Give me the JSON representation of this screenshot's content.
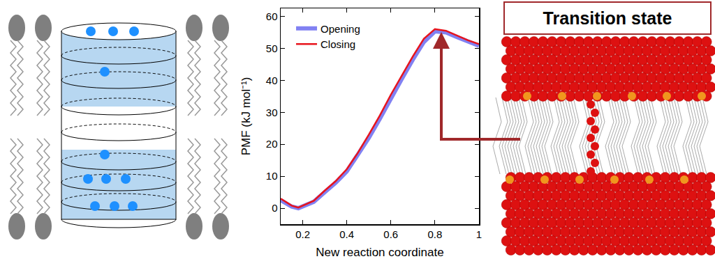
{
  "chart_data": {
    "type": "line",
    "x": [
      0.1,
      0.15,
      0.18,
      0.2,
      0.25,
      0.3,
      0.35,
      0.4,
      0.45,
      0.5,
      0.55,
      0.6,
      0.65,
      0.7,
      0.75,
      0.8,
      0.85,
      0.9,
      0.95,
      1.0
    ],
    "series": [
      {
        "name": "Opening",
        "color": "#6b6bf0",
        "values": [
          2.5,
          0.5,
          0,
          0.5,
          2,
          5,
          8,
          11.5,
          16.5,
          22,
          28,
          34.5,
          40.5,
          46.5,
          52,
          55.3,
          55,
          53.5,
          52,
          50.8
        ]
      },
      {
        "name": "Closing",
        "color": "#e8141c",
        "values": [
          3,
          0.8,
          0.2,
          0.8,
          2.3,
          5.5,
          8.5,
          12.2,
          17.3,
          23,
          29,
          35.5,
          41.5,
          47.5,
          53,
          56,
          55.5,
          54,
          52.5,
          51.3
        ]
      }
    ],
    "x_label": "New reaction coordinate",
    "y_label": "PMF (kJ mol⁻¹)",
    "xlim": [
      0.1,
      1.0
    ],
    "ylim": [
      -5,
      62.5
    ],
    "xticks": [
      0.2,
      0.4,
      0.6,
      0.8,
      1
    ],
    "yticks": [
      0,
      10,
      20,
      30,
      40,
      50,
      60
    ],
    "legend": "upper left",
    "grid": false
  },
  "diagram": {
    "label": "Transition state"
  }
}
